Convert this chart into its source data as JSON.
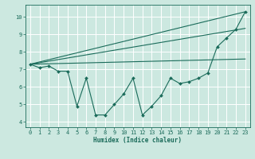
{
  "title": "",
  "xlabel": "Humidex (Indice chaleur)",
  "ylabel": "",
  "xlim": [
    -0.5,
    23.5
  ],
  "ylim": [
    3.7,
    10.7
  ],
  "yticks": [
    4,
    5,
    6,
    7,
    8,
    9,
    10
  ],
  "xticks": [
    0,
    1,
    2,
    3,
    4,
    5,
    6,
    7,
    8,
    9,
    10,
    11,
    12,
    13,
    14,
    15,
    16,
    17,
    18,
    19,
    20,
    21,
    22,
    23
  ],
  "bg_color": "#cce8e0",
  "line_color": "#1a6b5a",
  "grid_color": "#ffffff",
  "detail_line": [
    0,
    7.3,
    1,
    7.1,
    2,
    7.2,
    3,
    6.9,
    4,
    6.9,
    5,
    4.9,
    6,
    6.5,
    7,
    4.4,
    8,
    4.4,
    9,
    5.0,
    10,
    5.6,
    11,
    6.5,
    12,
    4.4,
    13,
    4.9,
    14,
    5.5,
    15,
    6.5,
    16,
    6.2,
    17,
    6.3,
    18,
    6.5,
    19,
    6.8,
    20,
    8.3,
    21,
    8.8,
    22,
    9.3,
    23,
    10.3
  ],
  "trend_lines": [
    [
      0,
      7.3,
      23,
      10.3
    ],
    [
      0,
      7.3,
      23,
      9.35
    ],
    [
      0,
      7.3,
      23,
      7.6
    ]
  ]
}
